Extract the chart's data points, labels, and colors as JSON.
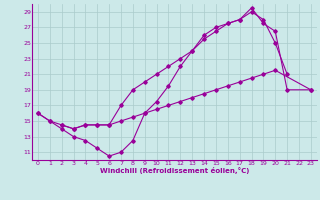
{
  "xlabel": "Windchill (Refroidissement éolien,°C)",
  "bg_color": "#cce9e9",
  "line_color": "#990099",
  "grid_color": "#aacccc",
  "xlim": [
    -0.5,
    23.5
  ],
  "ylim": [
    10.0,
    30.0
  ],
  "xticks": [
    0,
    1,
    2,
    3,
    4,
    5,
    6,
    7,
    8,
    9,
    10,
    11,
    12,
    13,
    14,
    15,
    16,
    17,
    18,
    19,
    20,
    21,
    22,
    23
  ],
  "yticks": [
    11,
    13,
    15,
    17,
    19,
    21,
    23,
    25,
    27,
    29
  ],
  "line1_x": [
    0,
    1,
    2,
    3,
    4,
    5,
    6,
    7,
    8,
    9,
    10,
    11,
    12,
    13,
    14,
    15,
    16,
    17,
    18,
    19,
    20,
    21
  ],
  "line1_y": [
    16,
    15,
    14,
    13,
    12.5,
    11.5,
    10.5,
    11,
    12.5,
    16,
    17.5,
    19.5,
    22,
    24,
    26,
    27,
    27.5,
    28,
    29,
    28,
    25,
    21
  ],
  "line2_x": [
    0,
    1,
    2,
    3,
    4,
    5,
    6,
    7,
    8,
    9,
    10,
    11,
    12,
    13,
    14,
    15,
    16,
    17,
    18,
    19,
    20,
    21,
    23
  ],
  "line2_y": [
    16,
    15,
    14.5,
    14,
    14.5,
    14.5,
    14.5,
    17,
    19,
    20,
    21,
    22,
    23,
    24,
    25.5,
    26.5,
    27.5,
    28,
    29.5,
    27.5,
    26.5,
    19,
    19
  ],
  "line3_x": [
    2,
    3,
    4,
    5,
    6,
    7,
    8,
    9,
    10,
    11,
    12,
    13,
    14,
    15,
    16,
    17,
    18,
    19,
    20,
    23
  ],
  "line3_y": [
    14.5,
    14.0,
    14.5,
    14.5,
    14.5,
    15.0,
    15.5,
    16.0,
    16.5,
    17.0,
    17.5,
    18.0,
    18.5,
    19.0,
    19.5,
    20.0,
    20.5,
    21.0,
    21.5,
    19.0
  ]
}
